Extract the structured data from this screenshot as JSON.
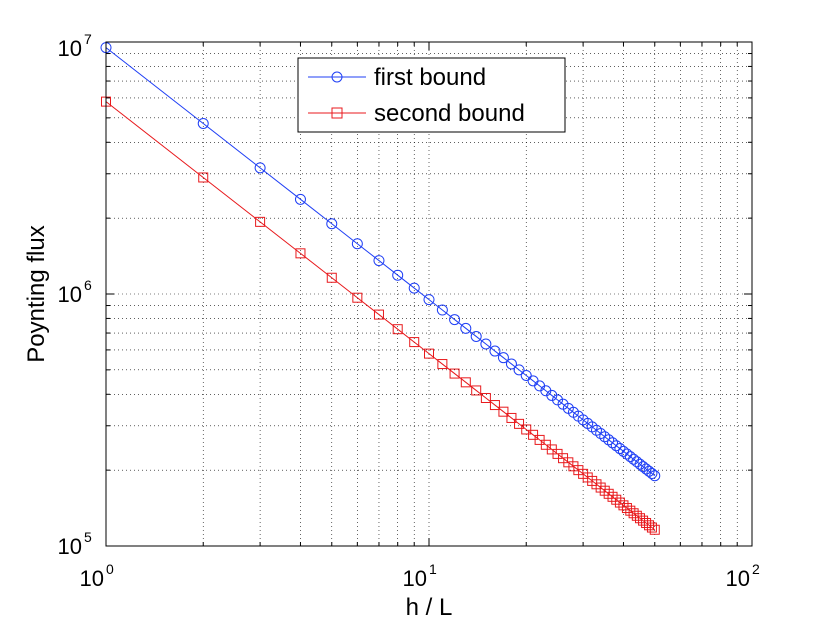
{
  "chart_data": {
    "type": "line",
    "xlabel": "h / L",
    "ylabel": "Poynting flux",
    "xscale": "log",
    "yscale": "log",
    "xlim": [
      1,
      100
    ],
    "ylim": [
      100000,
      10000000
    ],
    "grid": true,
    "legend_position": "top-center",
    "x_ticks": [
      {
        "base": "10",
        "exp": "0"
      },
      {
        "base": "10",
        "exp": "1"
      },
      {
        "base": "10",
        "exp": "2"
      }
    ],
    "y_ticks": [
      {
        "base": "10",
        "exp": "5"
      },
      {
        "base": "10",
        "exp": "6"
      },
      {
        "base": "10",
        "exp": "7"
      }
    ],
    "series": [
      {
        "name": "first bound",
        "color": "#1f3ff5",
        "marker": "circle",
        "x_start": 1,
        "x_end": 50,
        "x_step": 1,
        "y_at_x1": 9500000,
        "slope": -1
      },
      {
        "name": "second bound",
        "color": "#e8191c",
        "marker": "square",
        "x_start": 1,
        "x_end": 50,
        "x_step": 1,
        "y_at_x1": 5800000,
        "slope": -1
      }
    ]
  }
}
